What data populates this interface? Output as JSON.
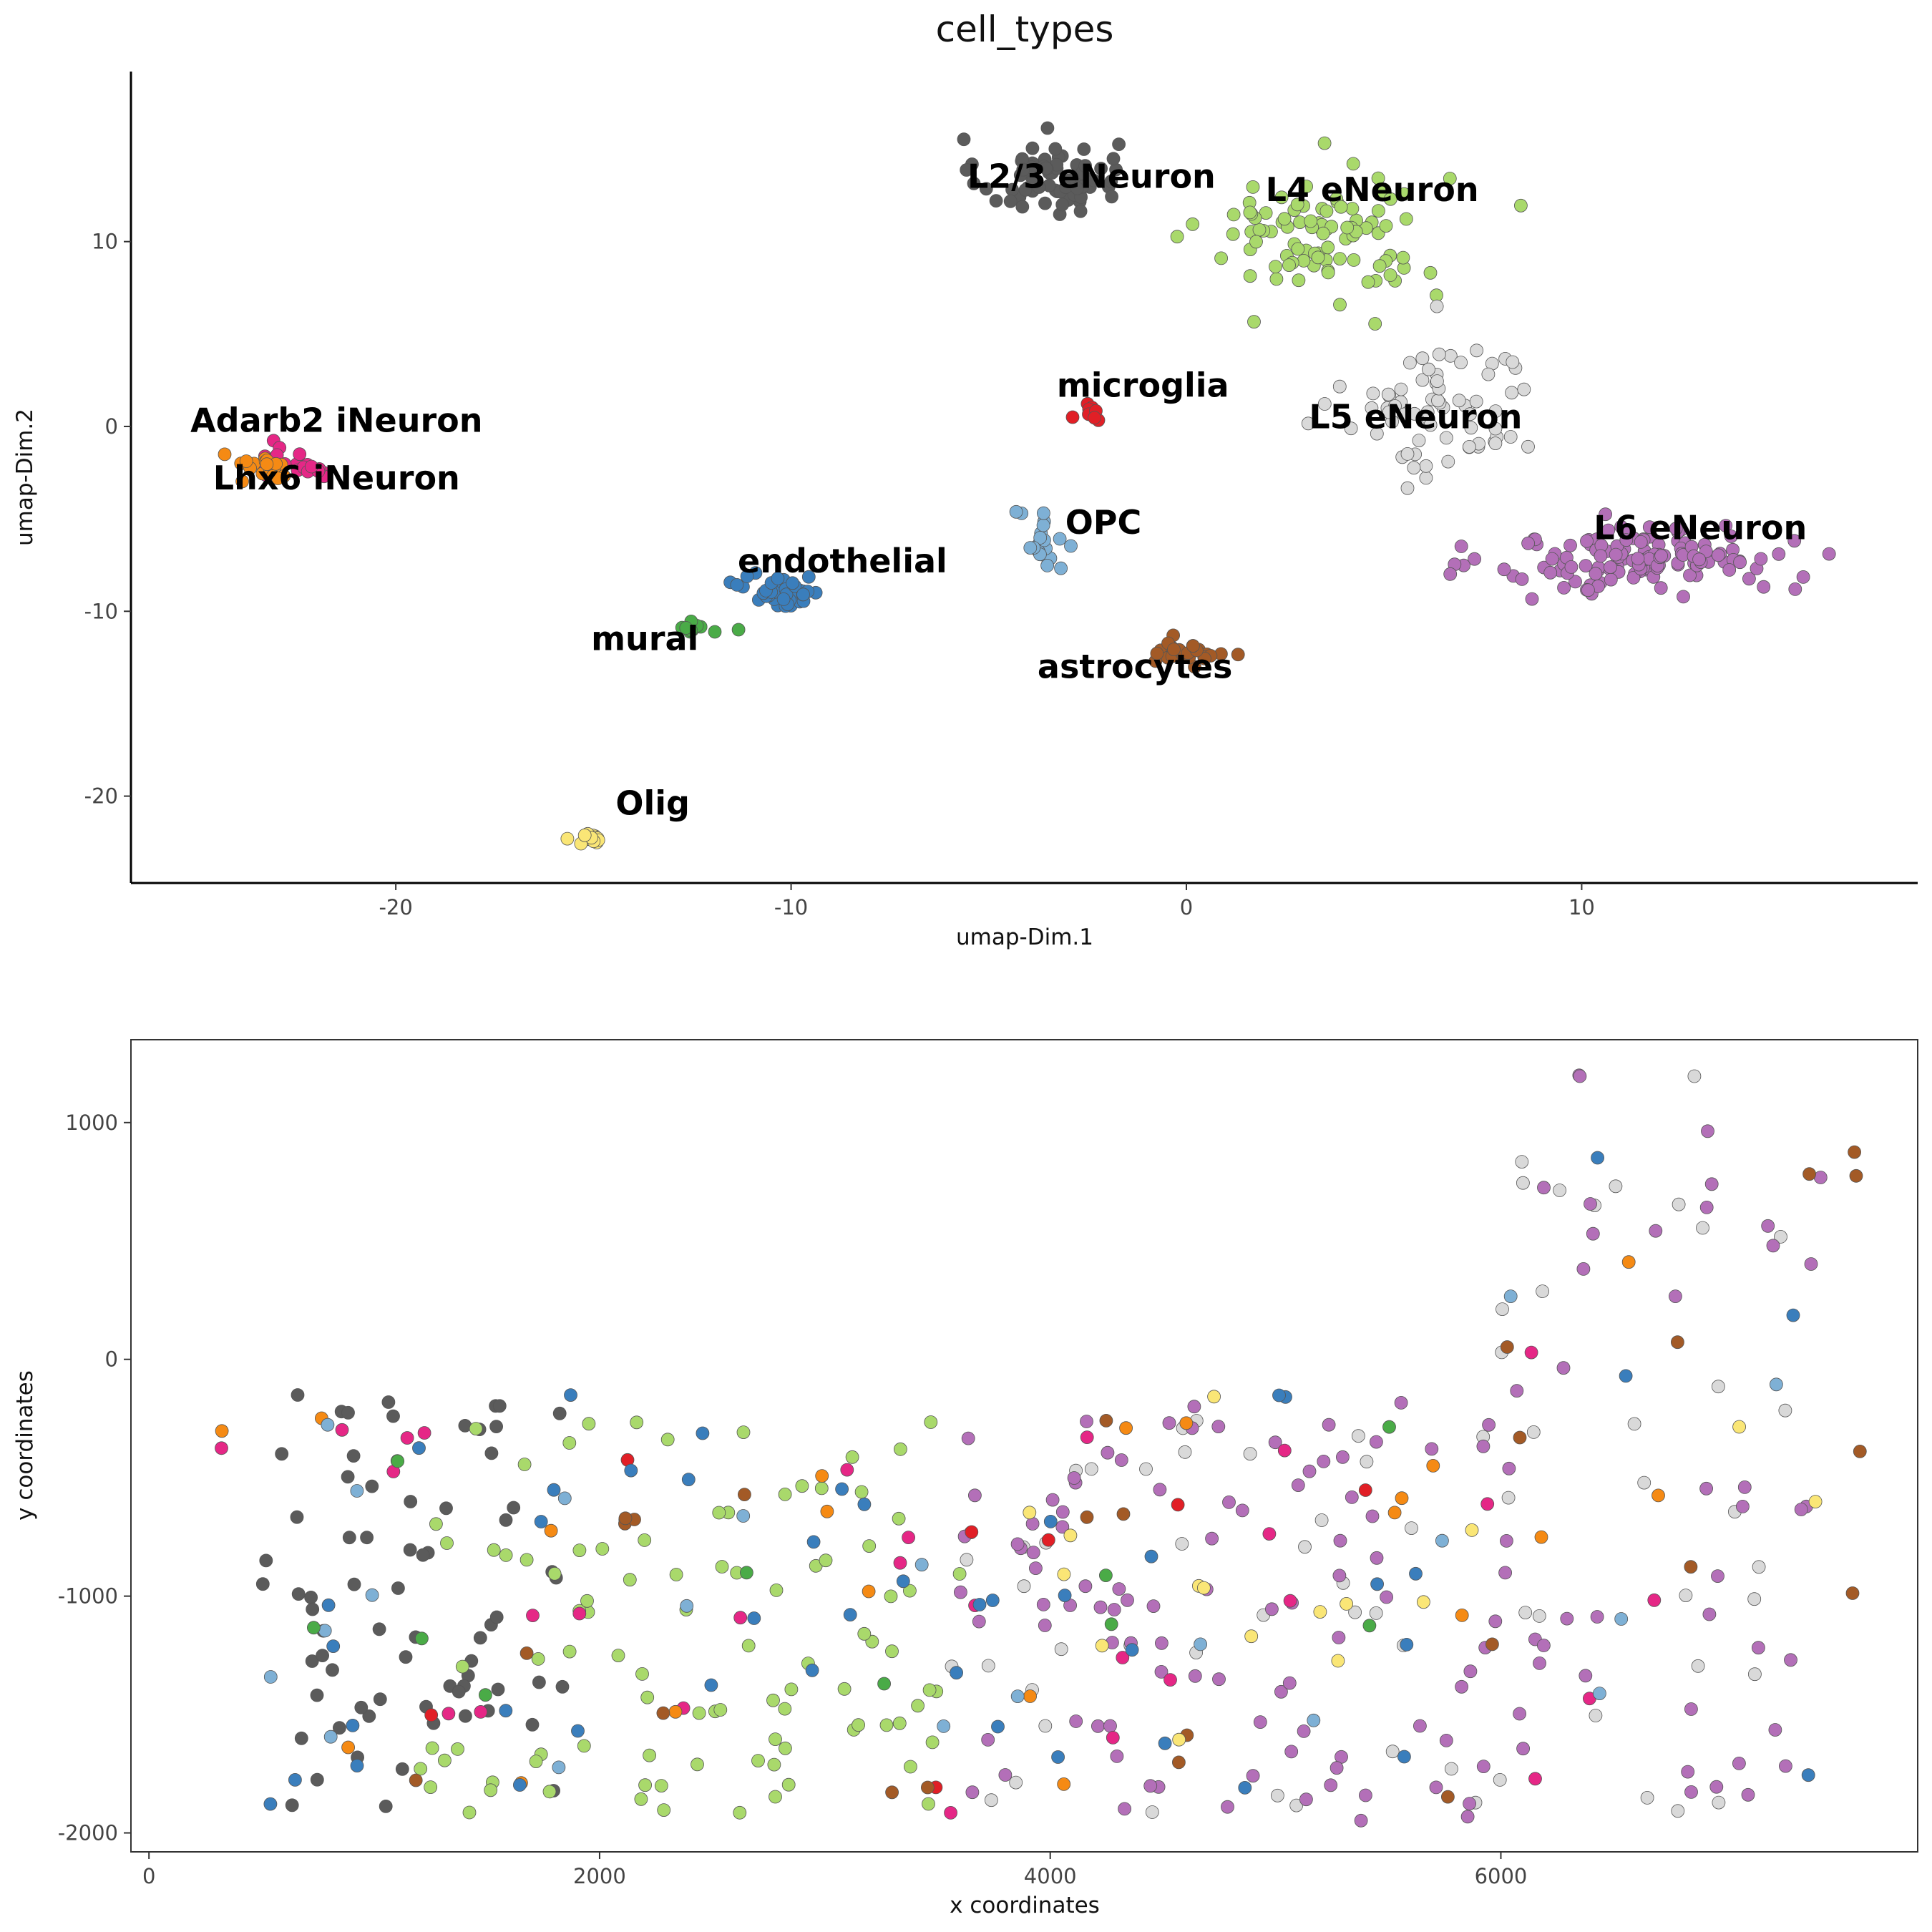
{
  "chart_data": [
    {
      "type": "scatter",
      "title": "cell_types",
      "xlabel": "umap-Dim.1",
      "ylabel": "umap-Dim.2",
      "xlim": [
        -26.7,
        18.5
      ],
      "ylim": [
        -24.7,
        19.2
      ],
      "xticks": [
        -20,
        -10,
        0,
        10
      ],
      "yticks": [
        -20,
        -10,
        0,
        10
      ],
      "xtick_labels": [
        "-20",
        "-10",
        "0",
        "10"
      ],
      "ytick_labels": [
        "-20",
        "-10",
        "0",
        "10"
      ],
      "grid": false,
      "legend": "none",
      "cluster_labels": [
        {
          "text": "L2/3 eNeuron",
          "x": -2.4,
          "y": 12.9
        },
        {
          "text": "L4 eNeuron",
          "x": 4.7,
          "y": 12.2
        },
        {
          "text": "microglia",
          "x": -1.1,
          "y": 1.6
        },
        {
          "text": "L5 eNeuron",
          "x": 5.8,
          "y": -0.1
        },
        {
          "text": "Adarb2 iNeuron",
          "x": -21.5,
          "y": -0.3
        },
        {
          "text": "Lhx6 iNeuron",
          "x": -21.5,
          "y": -3.4
        },
        {
          "text": "OPC",
          "x": -2.1,
          "y": -5.8
        },
        {
          "text": "L6 eNeuron",
          "x": 13.0,
          "y": -6.1
        },
        {
          "text": "endothelial",
          "x": -8.7,
          "y": -7.9
        },
        {
          "text": "mural",
          "x": -13.7,
          "y": -12.1
        },
        {
          "text": "astrocytes",
          "x": -1.3,
          "y": -13.6
        },
        {
          "text": "Olig",
          "x": -13.5,
          "y": -21.0
        }
      ],
      "series": [
        {
          "name": "L2/3 eNeuron",
          "color": "#5b5b5b",
          "cx": -3.5,
          "cy": 13.5,
          "sx": 1.6,
          "sy": 1.9,
          "n": 70
        },
        {
          "name": "L4 eNeuron",
          "color": "#a9d96b",
          "cx": 3.5,
          "cy": 10.5,
          "sx": 2.8,
          "sy": 3.4,
          "n": 95
        },
        {
          "name": "L5 eNeuron",
          "color": "#d9d9d9",
          "cx": 6.5,
          "cy": 1.0,
          "sx": 2.2,
          "sy": 3.7,
          "n": 70
        },
        {
          "name": "L6 eNeuron",
          "color": "#b36fb8",
          "cx": 11.5,
          "cy": -7.2,
          "sx": 3.4,
          "sy": 1.7,
          "n": 140
        },
        {
          "name": "Adarb2 iNeuron",
          "color": "#e52786",
          "cx": -22.5,
          "cy": -2.0,
          "sx": 1.0,
          "sy": 0.8,
          "n": 28
        },
        {
          "name": "Lhx6 iNeuron",
          "color": "#f58a14",
          "cx": -23.2,
          "cy": -2.2,
          "sx": 0.8,
          "sy": 0.8,
          "n": 20
        },
        {
          "name": "microglia",
          "color": "#e11f26",
          "cx": -2.5,
          "cy": 0.5,
          "sx": 0.4,
          "sy": 0.6,
          "n": 8
        },
        {
          "name": "OPC",
          "color": "#7eb0d5",
          "cx": -3.6,
          "cy": -6.5,
          "sx": 0.7,
          "sy": 1.8,
          "n": 20
        },
        {
          "name": "endothelial",
          "color": "#3a7ebc",
          "cx": -10.2,
          "cy": -8.9,
          "sx": 0.9,
          "sy": 0.8,
          "n": 45
        },
        {
          "name": "mural",
          "color": "#4aab47",
          "cx": -12.3,
          "cy": -10.8,
          "sx": 0.6,
          "sy": 0.4,
          "n": 10
        },
        {
          "name": "astrocytes",
          "color": "#a35a26",
          "cx": 0.0,
          "cy": -12.3,
          "sx": 0.9,
          "sy": 0.6,
          "n": 25
        },
        {
          "name": "Olig",
          "color": "#fae676",
          "cx": -15.1,
          "cy": -22.3,
          "sx": 0.35,
          "sy": 0.3,
          "n": 16
        }
      ]
    },
    {
      "type": "scatter",
      "title": "",
      "xlabel": "x coordinates",
      "ylabel": "y coordinates",
      "xlim": [
        -80,
        7850
      ],
      "ylim": [
        -2080,
        1350
      ],
      "xticks": [
        0,
        2000,
        4000,
        6000
      ],
      "yticks": [
        -2000,
        -1000,
        0,
        1000
      ],
      "xtick_labels": [
        "0",
        "2000",
        "4000",
        "6000"
      ],
      "ytick_labels": [
        "-2000",
        "-1000",
        "0",
        "1000"
      ],
      "grid": false,
      "legend": "none",
      "series": [
        {
          "name": "L2/3 eNeuron",
          "color": "#5b5b5b",
          "region": [
            500,
            1850,
            -1900,
            -100
          ],
          "n": 70
        },
        {
          "name": "L4 eNeuron",
          "color": "#a9d96b",
          "region": [
            1200,
            3600,
            -1950,
            -170
          ],
          "n": 95
        },
        {
          "name": "L5 eNeuron",
          "color": "#d9d9d9",
          "region": [
            3500,
            7300,
            -1950,
            1250
          ],
          "n": 70
        },
        {
          "name": "L6 eNeuron",
          "color": "#b36fb8",
          "region": [
            3600,
            7500,
            -1950,
            1200
          ],
          "n": 140
        },
        {
          "name": "Adarb2 iNeuron",
          "color": "#e52786",
          "region": [
            300,
            6700,
            -1950,
            250
          ],
          "n": 28
        },
        {
          "name": "Lhx6 iNeuron",
          "color": "#f58a14",
          "region": [
            300,
            6800,
            -1800,
            1000
          ],
          "n": 20
        },
        {
          "name": "microglia",
          "color": "#e11f26",
          "region": [
            300,
            6900,
            -1900,
            700
          ],
          "n": 8
        },
        {
          "name": "OPC",
          "color": "#7eb0d5",
          "region": [
            300,
            7600,
            -1600,
            700
          ],
          "n": 20
        },
        {
          "name": "endothelial",
          "color": "#3a7ebc",
          "region": [
            400,
            7400,
            -1800,
            900
          ],
          "n": 45
        },
        {
          "name": "mural",
          "color": "#4aab47",
          "region": [
            700,
            6700,
            -1700,
            750
          ],
          "n": 10
        },
        {
          "name": "astrocytes",
          "color": "#a35a26",
          "region": [
            250,
            7600,
            -1900,
            1050
          ],
          "n": 25
        },
        {
          "name": "Olig",
          "color": "#fae676",
          "region": [
            3900,
            7700,
            -1700,
            950
          ],
          "n": 16
        }
      ]
    }
  ]
}
